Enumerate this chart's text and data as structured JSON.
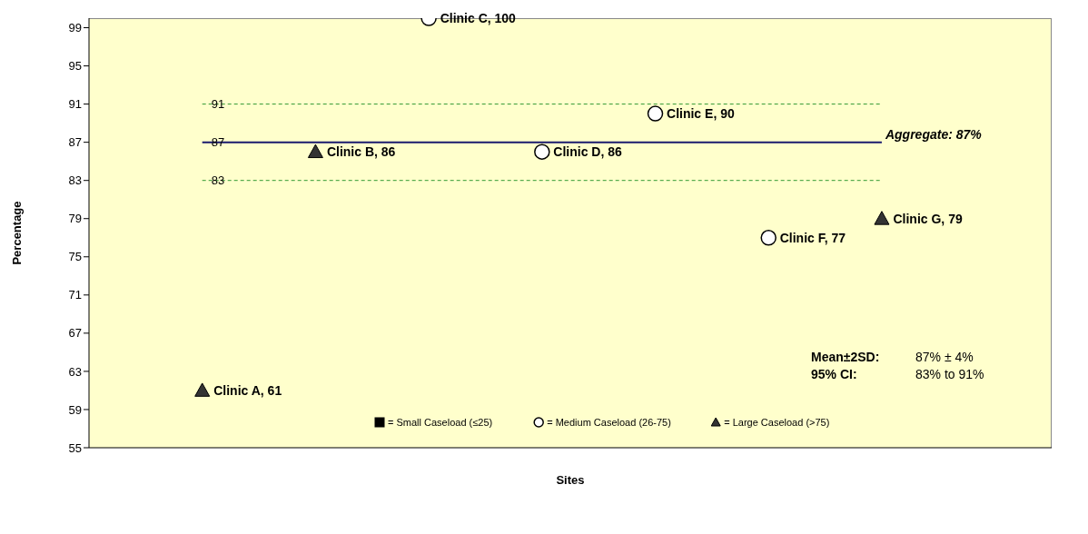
{
  "chart_data": {
    "type": "scatter",
    "xlabel": "Sites",
    "ylabel": "Percentage",
    "categories": [
      null,
      null,
      null,
      null,
      null,
      null,
      null,
      null
    ],
    "series": [
      {
        "name": "= Small Caseload (≤25)",
        "marker": "square",
        "color": "#000000",
        "values": [
          null,
          null,
          null,
          null,
          null,
          null,
          null,
          null
        ]
      },
      {
        "name": "= Medium Caseload (26-75)",
        "marker": "circle",
        "color": "#ffffff",
        "values": [
          null,
          null,
          100,
          86,
          90,
          77,
          null,
          null
        ],
        "value_labels": [
          null,
          null,
          "Clinic C, 100",
          "Clinic D, 86",
          "Clinic E, 90",
          "Clinic F, 77",
          null,
          null
        ]
      },
      {
        "name": "= Large Caseload (>75)",
        "marker": "triangle",
        "color": "#333333",
        "values": [
          61,
          86,
          null,
          null,
          null,
          null,
          79,
          null
        ],
        "value_labels": [
          "Clinic A, 61",
          "Clinic B, 86",
          null,
          null,
          null,
          null,
          "Clinic G, 79",
          null
        ]
      }
    ],
    "ylim": [
      55,
      100
    ],
    "yticks": [
      55,
      59,
      63,
      67,
      71,
      75,
      79,
      83,
      87,
      91,
      95,
      99
    ],
    "tick_labels": "y",
    "grid": false,
    "legend": "bottom right",
    "ref_lines": [
      {
        "axis": "y",
        "value": 91,
        "label": "91",
        "color": "#339933",
        "line_style": "dashed"
      },
      {
        "axis": "y",
        "value": 87,
        "label": "87",
        "color": "#1a1a6e",
        "line_style": "solid"
      },
      {
        "axis": "y",
        "value": 83,
        "label": "83",
        "color": "#339933",
        "line_style": "dashed"
      }
    ],
    "annotations": [
      "Aggregate: 87%",
      "Mean±2SD:  87% ± 4%",
      "95% CI:  83% to 91%"
    ]
  }
}
